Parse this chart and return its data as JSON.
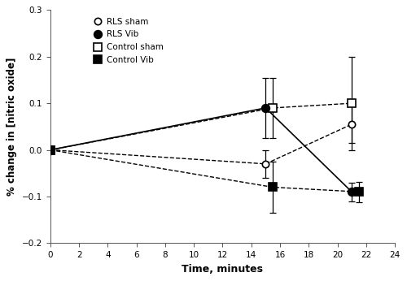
{
  "series": {
    "RLS sham": {
      "x": [
        0,
        15,
        21
      ],
      "y": [
        0.0,
        -0.03,
        0.055
      ],
      "yerr": [
        0.004,
        0.03,
        0.04
      ],
      "marker": "o",
      "fillstyle": "none",
      "color": "#000000",
      "linestyle": "--",
      "linewidth": 1.0,
      "markersize": 6,
      "zorder": 4
    },
    "RLS Vib": {
      "x": [
        0,
        15,
        21
      ],
      "y": [
        0.0,
        0.09,
        -0.09
      ],
      "yerr": [
        0.004,
        0.065,
        0.02
      ],
      "marker": "o",
      "fillstyle": "full",
      "color": "#000000",
      "linestyle": "-",
      "linewidth": 1.2,
      "markersize": 7,
      "zorder": 5
    },
    "Control sham": {
      "x": [
        0,
        15.5,
        21
      ],
      "y": [
        0.0,
        0.09,
        0.1
      ],
      "yerr": [
        0.004,
        0.065,
        0.1
      ],
      "marker": "s",
      "fillstyle": "none",
      "color": "#000000",
      "linestyle": "--",
      "linewidth": 1.0,
      "markersize": 7,
      "zorder": 4
    },
    "Control Vib": {
      "x": [
        0,
        15.5,
        21.5
      ],
      "y": [
        0.0,
        -0.08,
        -0.09
      ],
      "yerr": [
        0.004,
        0.055,
        0.022
      ],
      "marker": "s",
      "fillstyle": "full",
      "color": "#000000",
      "linestyle": "--",
      "linewidth": 1.0,
      "markersize": 7,
      "zorder": 4
    }
  },
  "xlabel": "Time, minutes",
  "ylabel": "% change in [nitric oxide]",
  "xlim": [
    0,
    24
  ],
  "ylim": [
    -0.2,
    0.3
  ],
  "xticks": [
    0,
    2,
    4,
    6,
    8,
    10,
    12,
    14,
    16,
    18,
    20,
    22,
    24
  ],
  "yticks": [
    -0.2,
    -0.1,
    0.0,
    0.1,
    0.2,
    0.3
  ],
  "legend_order": [
    "RLS sham",
    "RLS Vib",
    "Control sham",
    "Control Vib"
  ]
}
